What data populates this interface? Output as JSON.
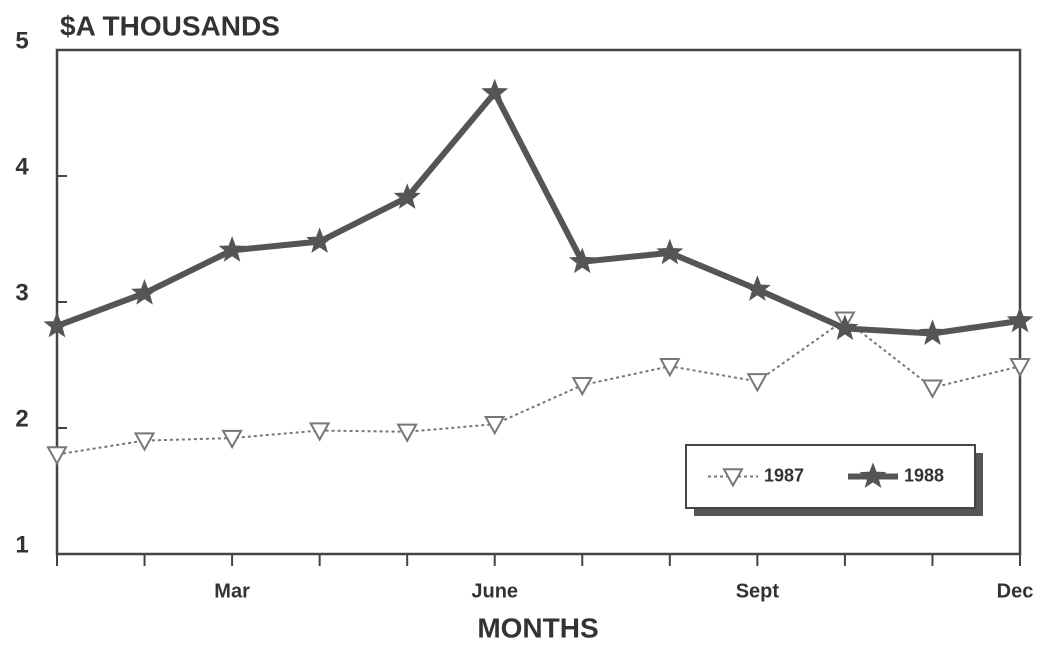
{
  "chart_data": {
    "type": "line",
    "title": "$A THOUSANDS",
    "x_label": "MONTHS",
    "categories": [
      null,
      null,
      "Mar",
      null,
      null,
      "June",
      null,
      null,
      "Sept",
      null,
      null,
      "Dec"
    ],
    "series": [
      {
        "name": "1987",
        "color": "#777777",
        "marker": "triangle-down",
        "values": [
          1.79,
          1.9,
          1.92,
          1.98,
          1.97,
          2.03,
          2.34,
          2.49,
          2.37,
          2.86,
          2.32,
          2.49
        ]
      },
      {
        "name": "1988",
        "color": "#555555",
        "marker": "star",
        "values": [
          2.81,
          3.07,
          3.41,
          3.48,
          3.83,
          4.66,
          3.32,
          3.39,
          3.1,
          2.79,
          2.75,
          2.85
        ]
      }
    ],
    "ylim": [
      1,
      5
    ],
    "yticks": [
      1,
      2,
      3,
      4,
      5
    ],
    "legend": "lower right"
  }
}
